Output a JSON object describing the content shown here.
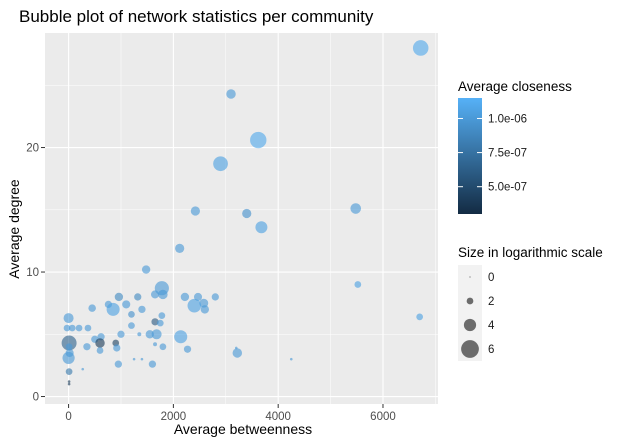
{
  "chart_data": {
    "type": "scatter",
    "title": "Bubble plot of network statistics per community",
    "xlabel": "Average betweenness",
    "ylabel": "Average degree",
    "xlim": [
      -450,
      7050
    ],
    "ylim": [
      -0.6,
      29.2
    ],
    "x_ticks": [
      0,
      2000,
      4000,
      6000
    ],
    "x_tick_labels": [
      "0",
      "2000",
      "4000",
      "6000"
    ],
    "y_ticks": [
      0,
      10,
      20
    ],
    "y_tick_labels": [
      "0",
      "10",
      "20"
    ],
    "grid": true,
    "panel_background": "#ebebeb",
    "legend_position": "right",
    "color_legend": {
      "title": "Average closeness",
      "labels": [
        "1.0e-06",
        "7.5e-07",
        "5.0e-07"
      ],
      "label_values": [
        1e-06,
        7.5e-07,
        5e-07
      ],
      "range": [
        3e-07,
        1.15e-06
      ],
      "low_color": "#132b43",
      "high_color": "#56b1f7"
    },
    "size_legend": {
      "title": "Size in logarithmic scale",
      "labels": [
        "0",
        "2",
        "4",
        "6"
      ],
      "values": [
        0,
        2,
        4,
        6
      ]
    },
    "points": [
      {
        "x": 6720,
        "y": 28.0,
        "size": 5.2,
        "closeness": 1.1e-06
      },
      {
        "x": 3100,
        "y": 24.3,
        "size": 3.0,
        "closeness": 1e-06
      },
      {
        "x": 3620,
        "y": 20.6,
        "size": 5.5,
        "closeness": 1.1e-06
      },
      {
        "x": 2900,
        "y": 18.7,
        "size": 4.9,
        "closeness": 1.05e-06
      },
      {
        "x": 5480,
        "y": 15.1,
        "size": 3.4,
        "closeness": 1e-06
      },
      {
        "x": 2420,
        "y": 14.9,
        "size": 2.9,
        "closeness": 1e-06
      },
      {
        "x": 3400,
        "y": 14.7,
        "size": 2.9,
        "closeness": 9.5e-07
      },
      {
        "x": 3680,
        "y": 13.6,
        "size": 3.9,
        "closeness": 1.05e-06
      },
      {
        "x": 2120,
        "y": 11.9,
        "size": 2.9,
        "closeness": 1e-06
      },
      {
        "x": 1480,
        "y": 10.2,
        "size": 2.6,
        "closeness": 1e-06
      },
      {
        "x": 5520,
        "y": 9.0,
        "size": 2.0,
        "closeness": 1.05e-06
      },
      {
        "x": 1780,
        "y": 8.7,
        "size": 4.7,
        "closeness": 1e-06
      },
      {
        "x": 1650,
        "y": 8.2,
        "size": 2.5,
        "closeness": 1e-06
      },
      {
        "x": 1800,
        "y": 8.2,
        "size": 3.0,
        "closeness": 1e-06
      },
      {
        "x": 2220,
        "y": 8.0,
        "size": 2.6,
        "closeness": 1e-06
      },
      {
        "x": 2470,
        "y": 8.0,
        "size": 2.5,
        "closeness": 1e-06
      },
      {
        "x": 2800,
        "y": 8.0,
        "size": 2.2,
        "closeness": 1e-06
      },
      {
        "x": 960,
        "y": 8.0,
        "size": 2.6,
        "closeness": 9e-07
      },
      {
        "x": 1320,
        "y": 8.0,
        "size": 2.2,
        "closeness": 9e-07
      },
      {
        "x": 760,
        "y": 7.4,
        "size": 2.2,
        "closeness": 1e-06
      },
      {
        "x": 2580,
        "y": 7.5,
        "size": 2.8,
        "closeness": 1e-06
      },
      {
        "x": 2400,
        "y": 7.3,
        "size": 4.5,
        "closeness": 1.05e-06
      },
      {
        "x": 1100,
        "y": 7.4,
        "size": 2.5,
        "closeness": 1e-06
      },
      {
        "x": 450,
        "y": 7.1,
        "size": 2.3,
        "closeness": 1e-06
      },
      {
        "x": 850,
        "y": 7.0,
        "size": 4.3,
        "closeness": 1.05e-06
      },
      {
        "x": 1400,
        "y": 7.0,
        "size": 2.2,
        "closeness": 1e-06
      },
      {
        "x": 2600,
        "y": 7.0,
        "size": 2.6,
        "closeness": 1e-06
      },
      {
        "x": 1200,
        "y": 6.6,
        "size": 2.0,
        "closeness": 9.5e-07
      },
      {
        "x": 1780,
        "y": 6.5,
        "size": 2.0,
        "closeness": 1e-06
      },
      {
        "x": 6700,
        "y": 6.4,
        "size": 2.0,
        "closeness": 1.05e-06
      },
      {
        "x": 0,
        "y": 6.3,
        "size": 3.2,
        "closeness": 1e-06
      },
      {
        "x": 1650,
        "y": 6.0,
        "size": 2.2,
        "closeness": 6e-07
      },
      {
        "x": 1750,
        "y": 5.9,
        "size": 2.0,
        "closeness": 1e-06
      },
      {
        "x": 1200,
        "y": 5.7,
        "size": 2.0,
        "closeness": 1e-06
      },
      {
        "x": 70,
        "y": 5.5,
        "size": 2.0,
        "closeness": 1e-06
      },
      {
        "x": 200,
        "y": 5.5,
        "size": 2.0,
        "closeness": 1e-06
      },
      {
        "x": -30,
        "y": 5.5,
        "size": 2.0,
        "closeness": 1e-06
      },
      {
        "x": 370,
        "y": 5.5,
        "size": 2.0,
        "closeness": 1e-06
      },
      {
        "x": 1550,
        "y": 5.0,
        "size": 2.6,
        "closeness": 1e-06
      },
      {
        "x": 1680,
        "y": 5.0,
        "size": 3.2,
        "closeness": 1e-06
      },
      {
        "x": 1000,
        "y": 5.0,
        "size": 2.2,
        "closeness": 1e-06
      },
      {
        "x": 1350,
        "y": 5.0,
        "size": 1.0,
        "closeness": 1e-06
      },
      {
        "x": 2140,
        "y": 4.8,
        "size": 4.3,
        "closeness": 1.05e-06
      },
      {
        "x": 620,
        "y": 4.8,
        "size": 2.2,
        "closeness": 1e-06
      },
      {
        "x": 500,
        "y": 4.6,
        "size": 2.2,
        "closeness": 1e-06
      },
      {
        "x": 10,
        "y": 4.3,
        "size": 5.0,
        "closeness": 6.5e-07
      },
      {
        "x": 600,
        "y": 4.3,
        "size": 3.0,
        "closeness": 4e-07
      },
      {
        "x": 900,
        "y": 4.3,
        "size": 2.0,
        "closeness": 4.5e-07
      },
      {
        "x": 1650,
        "y": 4.2,
        "size": 1.0,
        "closeness": 1e-06
      },
      {
        "x": 10,
        "y": 4.0,
        "size": 2.0,
        "closeness": 1e-06
      },
      {
        "x": 350,
        "y": 4.0,
        "size": 2.2,
        "closeness": 1e-06
      },
      {
        "x": 920,
        "y": 3.9,
        "size": 2.2,
        "closeness": 1e-06
      },
      {
        "x": 1800,
        "y": 4.0,
        "size": 2.0,
        "closeness": 1e-06
      },
      {
        "x": 600,
        "y": 3.7,
        "size": 2.0,
        "closeness": 1e-06
      },
      {
        "x": 2270,
        "y": 3.8,
        "size": 2.2,
        "closeness": 1e-06
      },
      {
        "x": 3220,
        "y": 3.5,
        "size": 3.0,
        "closeness": 1e-06
      },
      {
        "x": 3200,
        "y": 3.9,
        "size": 0.5,
        "closeness": 1e-06
      },
      {
        "x": 20,
        "y": 3.5,
        "size": 2.5,
        "closeness": 1e-06
      },
      {
        "x": 0,
        "y": 3.1,
        "size": 4.0,
        "closeness": 1e-06
      },
      {
        "x": 1250,
        "y": 3.0,
        "size": 0.5,
        "closeness": 1e-06
      },
      {
        "x": 1400,
        "y": 3.0,
        "size": 0.5,
        "closeness": 1e-06
      },
      {
        "x": 4250,
        "y": 3.0,
        "size": 0.5,
        "closeness": 1e-06
      },
      {
        "x": 950,
        "y": 2.6,
        "size": 2.2,
        "closeness": 1e-06
      },
      {
        "x": 1600,
        "y": 2.6,
        "size": 2.2,
        "closeness": 1e-06
      },
      {
        "x": 270,
        "y": 2.2,
        "size": 0.5,
        "closeness": 1e-06
      },
      {
        "x": 10,
        "y": 2.0,
        "size": 2.0,
        "closeness": 8e-07
      },
      {
        "x": 10,
        "y": 1.2,
        "size": 0.5,
        "closeness": 4e-07
      },
      {
        "x": 10,
        "y": 1.0,
        "size": 0.5,
        "closeness": 4e-07
      }
    ]
  }
}
